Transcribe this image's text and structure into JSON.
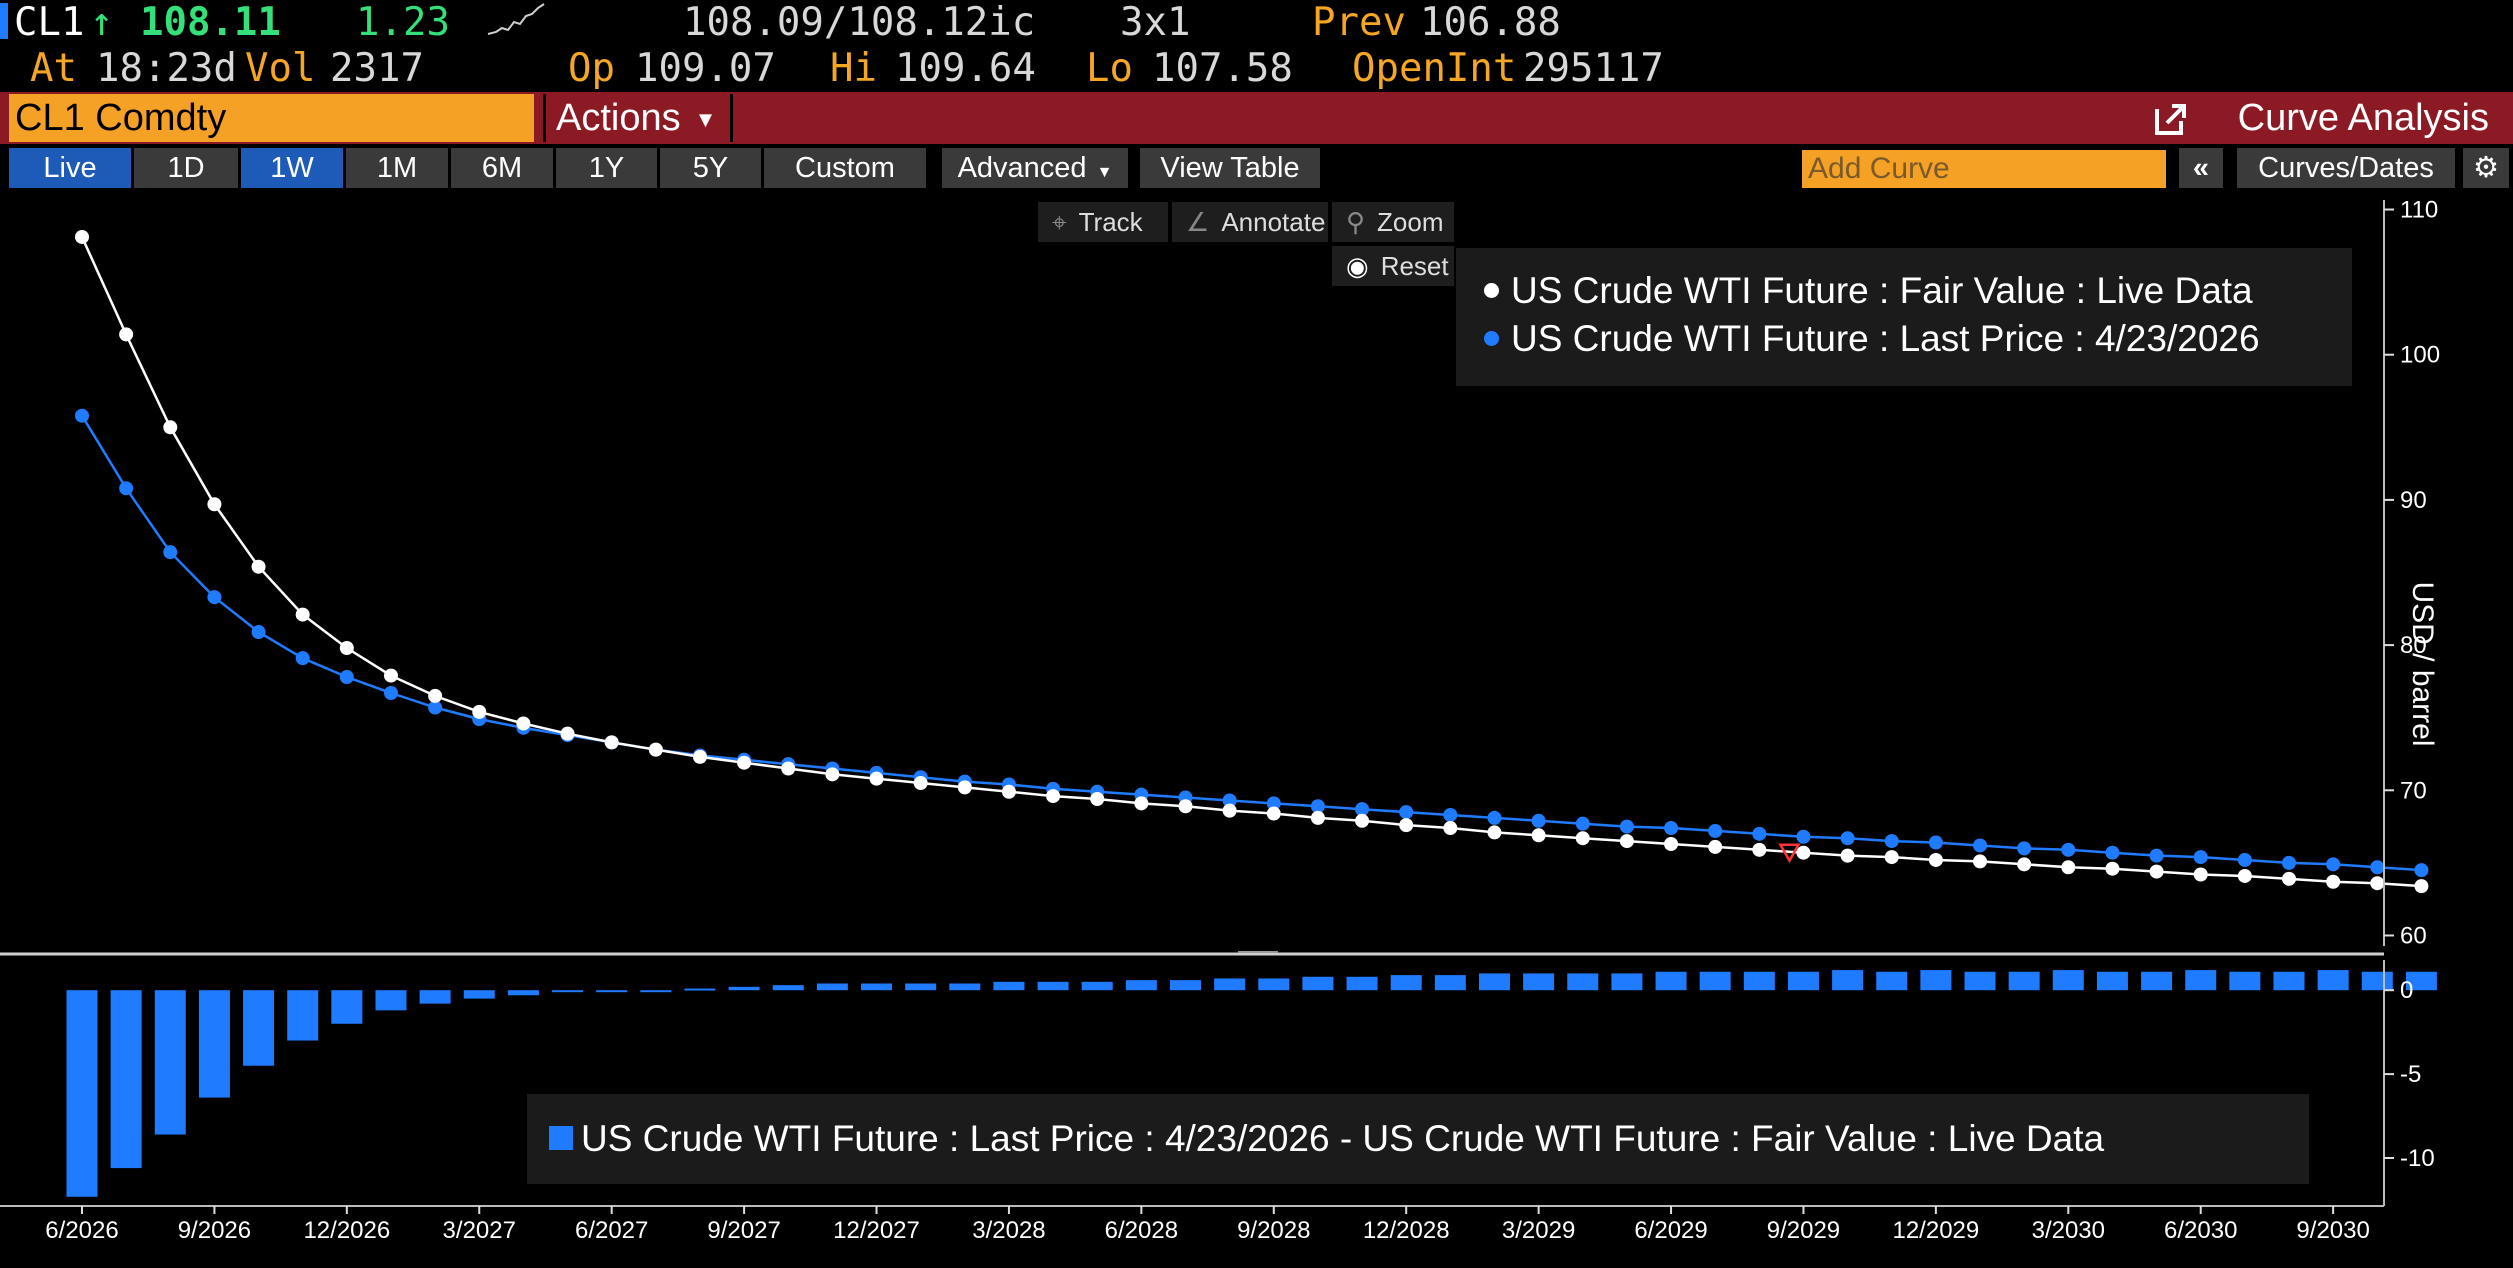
{
  "quote": {
    "ticker": "CL1",
    "arrow": "↑",
    "last": "108.11",
    "change": "1.23",
    "bid_ask": "108.09/108.12ic",
    "size": "3x1",
    "prev_label": "Prev",
    "prev": "106.88",
    "at_label": "At",
    "time": "18:23d",
    "vol_label": "Vol",
    "vol": "2317",
    "op_label": "Op",
    "op": "109.07",
    "hi_label": "Hi",
    "hi": "109.64",
    "lo_label": "Lo",
    "lo": "107.58",
    "openint_label": "OpenInt",
    "openint": "295117"
  },
  "titlebar": {
    "security": "CL1 Comdty",
    "actions": "Actions",
    "app_title": "Curve Analysis"
  },
  "toolbar": {
    "ranges": [
      "Live",
      "1D",
      "1W",
      "1M",
      "6M",
      "1Y",
      "5Y",
      "Custom"
    ],
    "advanced": "Advanced",
    "view_table": "View Table",
    "add_curve_placeholder": "Add Curve",
    "collapse": "«",
    "curves_dates": "Curves/Dates"
  },
  "tools": {
    "track": "Track",
    "annotate": "Annotate",
    "zoom": "Zoom",
    "reset": "Reset"
  },
  "colors": {
    "fair_value": "#ffffff",
    "last_price": "#1f7bff",
    "accent_orange": "#f5a126",
    "title_bar": "#8b1a24",
    "active_tab": "#1e5bb8"
  },
  "chart_data": [
    {
      "type": "line",
      "ylabel": "USD / barrel",
      "yticks": [
        60,
        70,
        80,
        90,
        100,
        110
      ],
      "ylim": [
        59,
        111
      ],
      "x_tick_labels": [
        "6/2026",
        "9/2026",
        "12/2026",
        "3/2027",
        "6/2027",
        "9/2027",
        "12/2027",
        "3/2028",
        "6/2028",
        "9/2028",
        "12/2028",
        "3/2029",
        "6/2029",
        "9/2029",
        "12/2029",
        "3/2030",
        "6/2030",
        "9/2030"
      ],
      "first_contract": "6/2026",
      "contract_months": 54,
      "legend_position": "top-right",
      "series": [
        {
          "name": "US Crude WTI Future : Fair Value : Live Data",
          "values": [
            108.11,
            101.4,
            95.0,
            89.7,
            85.4,
            82.1,
            79.8,
            77.9,
            76.5,
            75.4,
            74.6,
            73.9,
            73.3,
            72.8,
            72.3,
            71.9,
            71.5,
            71.1,
            70.8,
            70.5,
            70.2,
            69.9,
            69.6,
            69.4,
            69.1,
            68.9,
            68.6,
            68.4,
            68.1,
            67.9,
            67.6,
            67.4,
            67.1,
            66.9,
            66.7,
            66.5,
            66.3,
            66.1,
            65.9,
            65.7,
            65.5,
            65.4,
            65.2,
            65.1,
            64.9,
            64.7,
            64.6,
            64.4,
            64.2,
            64.1,
            63.9,
            63.7,
            63.6,
            63.4
          ]
        },
        {
          "name": "US Crude WTI Future : Last Price : 4/23/2026",
          "values": [
            95.8,
            90.8,
            86.4,
            83.3,
            80.9,
            79.1,
            77.8,
            76.7,
            75.7,
            74.9,
            74.3,
            73.8,
            73.3,
            72.8,
            72.4,
            72.1,
            71.8,
            71.5,
            71.2,
            70.9,
            70.6,
            70.4,
            70.1,
            69.9,
            69.7,
            69.5,
            69.3,
            69.1,
            68.9,
            68.7,
            68.5,
            68.3,
            68.1,
            67.9,
            67.7,
            67.5,
            67.4,
            67.2,
            67.0,
            66.8,
            66.7,
            66.5,
            66.4,
            66.2,
            66.0,
            65.9,
            65.7,
            65.5,
            65.4,
            65.2,
            65.0,
            64.9,
            64.7,
            64.5
          ]
        }
      ]
    },
    {
      "type": "bar",
      "yticks": [
        0,
        -5,
        -10
      ],
      "ylim": [
        -12.8,
        1.8
      ],
      "legend_position": "bottom-center",
      "series": [
        {
          "name": "US Crude WTI Future : Last Price : 4/23/2026 - US Crude WTI Future : Fair Value : Live Data",
          "values": [
            -12.31,
            -10.6,
            -8.6,
            -6.4,
            -4.5,
            -3.0,
            -2.0,
            -1.2,
            -0.8,
            -0.5,
            -0.3,
            -0.1,
            0.0,
            0.0,
            0.1,
            0.2,
            0.3,
            0.4,
            0.4,
            0.4,
            0.4,
            0.5,
            0.5,
            0.5,
            0.6,
            0.6,
            0.7,
            0.7,
            0.8,
            0.8,
            0.9,
            0.9,
            1.0,
            1.0,
            1.0,
            1.0,
            1.1,
            1.1,
            1.1,
            1.1,
            1.2,
            1.1,
            1.2,
            1.1,
            1.1,
            1.2,
            1.1,
            1.1,
            1.2,
            1.1,
            1.1,
            1.2,
            1.1,
            1.1
          ]
        }
      ]
    }
  ]
}
